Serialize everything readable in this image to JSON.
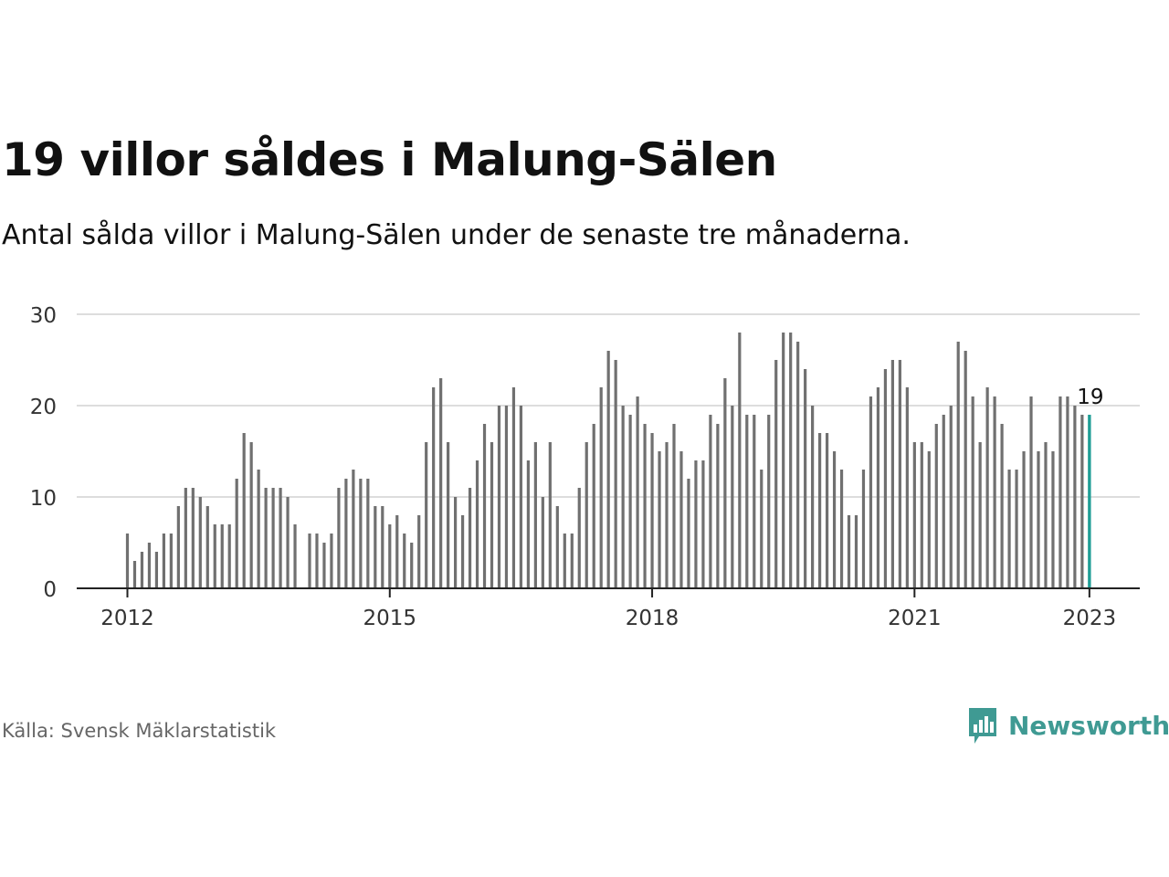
{
  "title": "19 villor såldes i Malung-Sälen",
  "subtitle": "Antal sålda villor i Malung-Sälen under de senaste tre månaderna.",
  "source": "Källa: Svensk Mäklarstatistik",
  "brand": {
    "name": "Newsworthy",
    "icon": "newsworthy-logo-icon",
    "color": "#3f9a93"
  },
  "colors": {
    "bar": "#707070",
    "highlight": "#1f9e96",
    "grid": "#dddddd",
    "axis": "#222222"
  },
  "chart_data": {
    "type": "bar",
    "title": "19 villor såldes i Malung-Sälen",
    "xlabel": "",
    "ylabel": "",
    "ylim": [
      0,
      30
    ],
    "yticks": [
      "0",
      "10",
      "20",
      "30"
    ],
    "xticks": [
      "2012",
      "2015",
      "2018",
      "2021",
      "2023"
    ],
    "xtick_years": [
      2012,
      2015,
      2018,
      2021,
      2023
    ],
    "start": "2012-01",
    "end": "2023-01",
    "grid": true,
    "legend": "none",
    "highlight_label": "19",
    "values": [
      6,
      3,
      4,
      5,
      4,
      6,
      6,
      9,
      11,
      11,
      10,
      9,
      7,
      7,
      7,
      12,
      17,
      16,
      13,
      11,
      11,
      11,
      10,
      7,
      null,
      6,
      6,
      5,
      6,
      11,
      12,
      13,
      12,
      12,
      9,
      9,
      7,
      8,
      6,
      5,
      8,
      16,
      22,
      23,
      16,
      10,
      8,
      11,
      14,
      18,
      16,
      20,
      20,
      22,
      20,
      14,
      16,
      10,
      16,
      9,
      6,
      6,
      11,
      16,
      18,
      22,
      26,
      25,
      20,
      19,
      21,
      18,
      17,
      15,
      16,
      18,
      15,
      12,
      14,
      14,
      19,
      18,
      23,
      20,
      28,
      19,
      19,
      13,
      19,
      25,
      28,
      28,
      27,
      24,
      20,
      17,
      17,
      15,
      13,
      8,
      8,
      13,
      21,
      22,
      24,
      25,
      25,
      22,
      16,
      16,
      15,
      18,
      19,
      20,
      27,
      26,
      21,
      16,
      22,
      21,
      18,
      13,
      13,
      15,
      21,
      15,
      16,
      15,
      21,
      21,
      20,
      19,
      19
    ]
  }
}
